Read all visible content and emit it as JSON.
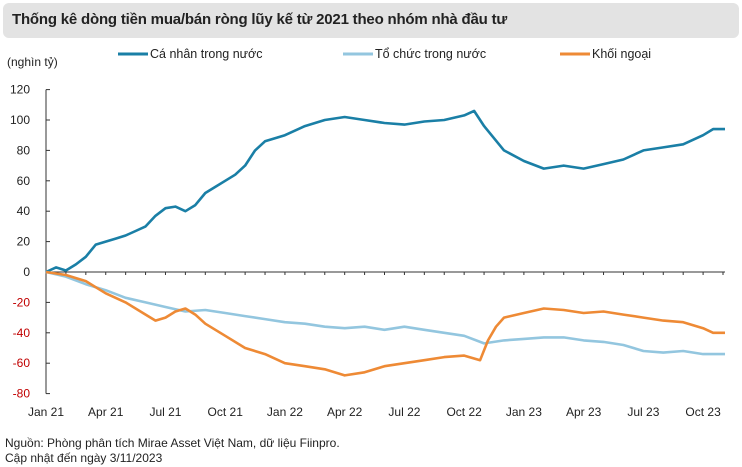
{
  "chart_data": {
    "type": "line",
    "title": "Thống kê dòng tiền mua/bán ròng lũy kế từ 2021 theo nhóm nhà đầu tư",
    "ylabel": "(nghìn tỷ)",
    "ylim": [
      -80,
      120
    ],
    "yticks": [
      120,
      100,
      80,
      60,
      40,
      20,
      0,
      -20,
      -40,
      -60,
      -80
    ],
    "xlim": [
      0,
      34.1
    ],
    "xticks": [
      {
        "m": 0,
        "label": "Jan 21"
      },
      {
        "m": 3,
        "label": "Apr 21"
      },
      {
        "m": 6,
        "label": "Jul 21"
      },
      {
        "m": 9,
        "label": "Oct 21"
      },
      {
        "m": 12,
        "label": "Jan 22"
      },
      {
        "m": 15,
        "label": "Apr 22"
      },
      {
        "m": 18,
        "label": "Jul 22"
      },
      {
        "m": 21,
        "label": "Oct 22"
      },
      {
        "m": 24,
        "label": "Jan 23"
      },
      {
        "m": 27,
        "label": "Apr 23"
      },
      {
        "m": 30,
        "label": "Jul 23"
      },
      {
        "m": 33,
        "label": "Oct 23"
      }
    ],
    "legend_position": "top",
    "x_unit": "months since Jan 2021",
    "series": [
      {
        "name": "Cá nhân trong nước",
        "color": "#1a7fa6",
        "x": [
          0,
          0.5,
          1,
          1.5,
          2,
          2.5,
          3,
          3.5,
          4,
          4.5,
          5,
          5.5,
          6,
          6.5,
          7,
          7.5,
          8,
          8.5,
          9,
          9.5,
          10,
          10.5,
          11,
          11.5,
          12,
          13,
          14,
          15,
          16,
          17,
          18,
          19,
          20,
          21,
          21.5,
          22,
          22.5,
          23,
          24,
          25,
          26,
          27,
          28,
          29,
          30,
          31,
          32,
          33,
          33.5,
          34.1
        ],
        "values": [
          0,
          3,
          1,
          5,
          10,
          18,
          20,
          22,
          24,
          27,
          30,
          37,
          42,
          43,
          40,
          44,
          52,
          56,
          60,
          64,
          70,
          80,
          86,
          88,
          90,
          96,
          100,
          102,
          100,
          98,
          97,
          99,
          100,
          103,
          106,
          96,
          88,
          80,
          73,
          68,
          70,
          68,
          71,
          74,
          80,
          82,
          84,
          90,
          94,
          94
        ]
      },
      {
        "name": "Tổ chức trong nước",
        "color": "#93c6df",
        "x": [
          0,
          1,
          2,
          3,
          4,
          5,
          6,
          7,
          8,
          9,
          10,
          11,
          12,
          13,
          14,
          15,
          16,
          17,
          18,
          19,
          20,
          21,
          22,
          23,
          24,
          25,
          26,
          27,
          28,
          29,
          30,
          31,
          32,
          33,
          34.1
        ],
        "values": [
          0,
          -3,
          -8,
          -12,
          -17,
          -20,
          -23,
          -26,
          -25,
          -27,
          -29,
          -31,
          -33,
          -34,
          -36,
          -37,
          -36,
          -38,
          -36,
          -38,
          -40,
          -42,
          -47,
          -45,
          -44,
          -43,
          -43,
          -45,
          -46,
          -48,
          -52,
          -53,
          -52,
          -54,
          -54
        ]
      },
      {
        "name": "Khối ngoại",
        "color": "#ee8a35",
        "x": [
          0,
          1,
          2,
          3,
          4,
          5,
          5.5,
          6,
          6.5,
          7,
          7.5,
          8,
          9,
          10,
          11,
          12,
          13,
          14,
          15,
          16,
          17,
          18,
          19,
          20,
          21,
          21.8,
          22.2,
          22.6,
          23,
          24,
          25,
          26,
          27,
          28,
          29,
          30,
          31,
          32,
          33,
          33.5,
          34.1
        ],
        "values": [
          0,
          -2,
          -6,
          -14,
          -20,
          -28,
          -32,
          -30,
          -26,
          -24,
          -28,
          -34,
          -42,
          -50,
          -54,
          -60,
          -62,
          -64,
          -68,
          -66,
          -62,
          -60,
          -58,
          -56,
          -55,
          -58,
          -45,
          -36,
          -30,
          -27,
          -24,
          -25,
          -27,
          -26,
          -28,
          -30,
          -32,
          -33,
          -37,
          -40,
          -40
        ]
      }
    ]
  },
  "footer": {
    "source": "Nguồn: Phòng phân tích Mirae Asset Việt Nam, dữ liệu Fiinpro.",
    "updated": "Cập nhật đến ngày 3/11/2023"
  },
  "colors": {
    "negative_tick": "#c00000",
    "axis": "#333333"
  }
}
